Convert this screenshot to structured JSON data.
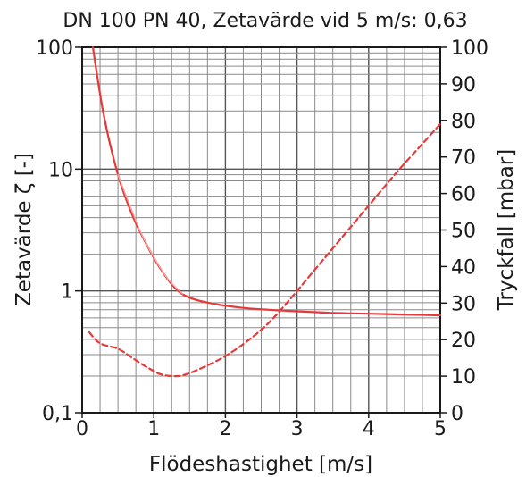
{
  "chart_data": {
    "type": "line",
    "title": "DN 100 PN 40, Zetavärde vid 5 m/s: 0,63",
    "xlabel": "Flödeshastighet [m/s]",
    "ylabel_left": "Zetavärde ζ [-]",
    "ylabel_right": "Tryckfall [mbar]",
    "xlim": [
      0,
      5
    ],
    "ylim_left": [
      0.1,
      100
    ],
    "ylim_right": [
      0,
      100
    ],
    "left_scale": "log",
    "grid": true,
    "x_ticks": [
      {
        "v": 0,
        "label": "0"
      },
      {
        "v": 1,
        "label": "1"
      },
      {
        "v": 2,
        "label": "2"
      },
      {
        "v": 3,
        "label": "3"
      },
      {
        "v": 4,
        "label": "4"
      },
      {
        "v": 5,
        "label": "5"
      }
    ],
    "left_ticks": [
      {
        "v": 100,
        "label": "100"
      },
      {
        "v": 10,
        "label": "10"
      },
      {
        "v": 1,
        "label": "1"
      },
      {
        "v": 0.1,
        "label": "0,1"
      }
    ],
    "right_ticks": [
      {
        "v": 100,
        "label": "100"
      },
      {
        "v": 90,
        "label": "90"
      },
      {
        "v": 80,
        "label": "80"
      },
      {
        "v": 70,
        "label": "70"
      },
      {
        "v": 60,
        "label": "60"
      },
      {
        "v": 50,
        "label": "50"
      },
      {
        "v": 40,
        "label": "40"
      },
      {
        "v": 30,
        "label": "30"
      },
      {
        "v": 20,
        "label": "20"
      },
      {
        "v": 10,
        "label": "10"
      },
      {
        "v": 0,
        "label": "0"
      }
    ],
    "series": [
      {
        "axis": "left",
        "style": "solid",
        "color": "#e63a3a",
        "x": [
          0.15,
          0.3,
          0.5,
          0.7,
          0.9,
          1.1,
          1.3,
          1.5,
          1.8,
          2.2,
          2.6,
          3.0,
          3.5,
          4.0,
          4.5,
          5.0
        ],
        "y": [
          100,
          28,
          9,
          4.2,
          2.4,
          1.5,
          1.05,
          0.88,
          0.79,
          0.73,
          0.7,
          0.68,
          0.66,
          0.65,
          0.64,
          0.63
        ]
      },
      {
        "axis": "left",
        "style": "solid-thin",
        "color": "#f4a6a6",
        "x": [
          0.5,
          0.8,
          1.0,
          1.2,
          1.4
        ],
        "y": [
          9,
          3.2,
          1.9,
          1.25,
          0.95
        ]
      },
      {
        "axis": "right",
        "style": "dashed",
        "color": "#e63a3a",
        "x": [
          0.1,
          0.25,
          0.5,
          0.7,
          0.9,
          1.1,
          1.3,
          1.45,
          1.7,
          2.0,
          2.3,
          2.6,
          2.9,
          3.2,
          3.5,
          3.8,
          4.1,
          4.4,
          4.7,
          5.0
        ],
        "y": [
          22,
          19,
          17.5,
          15,
          12.5,
          10.5,
          10,
          10.5,
          12.5,
          15.5,
          19.5,
          24.5,
          31,
          38,
          45,
          52,
          59,
          66,
          72.5,
          79
        ]
      }
    ]
  }
}
